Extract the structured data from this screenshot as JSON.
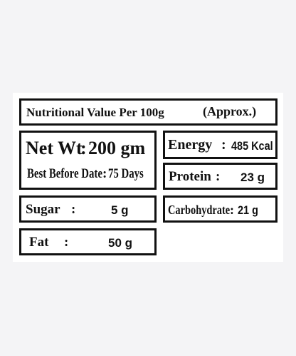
{
  "header": {
    "title": "Nutritional Value Per 100g",
    "approx": "(Approx.)"
  },
  "net_weight": {
    "label": "Net Wt",
    "sep": ":",
    "value": "200 gm"
  },
  "best_before": {
    "label": "Best Before Date",
    "sep": ":",
    "value": "75 Days"
  },
  "energy": {
    "label": "Energy",
    "sep": ":",
    "value": "485 Kcal"
  },
  "protein": {
    "label": "Protein",
    "sep": ":",
    "value": "23 g"
  },
  "sugar": {
    "label": "Sugar",
    "sep": ":",
    "value": "5 g"
  },
  "carbohydrate": {
    "label": "Carbohydrate",
    "sep": ":",
    "value": "21 g"
  },
  "fat": {
    "label": "Fat",
    "sep": ":",
    "value": "50 g"
  }
}
